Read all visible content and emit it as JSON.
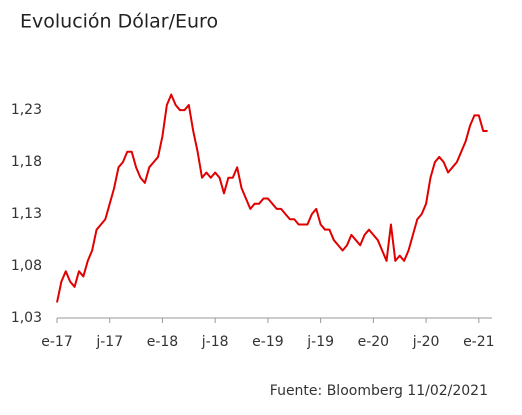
{
  "chart_data": {
    "type": "line",
    "title": "Evolución Dólar/Euro",
    "source": "Fuente: Bloomberg 11/02/2021",
    "x": [
      0,
      0.5,
      1,
      1.5,
      2,
      2.5,
      3,
      3.5,
      4,
      4.5,
      5,
      5.5,
      6,
      6.5,
      7,
      7.5,
      8,
      8.5,
      9,
      9.5,
      10,
      10.5,
      11,
      11.5,
      12,
      12.5,
      13,
      13.5,
      14,
      14.5,
      15,
      15.5,
      16,
      16.5,
      17,
      17.5,
      18,
      18.5,
      19,
      19.5,
      20,
      20.5,
      21,
      21.5,
      22,
      22.5,
      23,
      23.5,
      24,
      24.5,
      25,
      25.5,
      26,
      26.5,
      27,
      27.5,
      28,
      28.5,
      29,
      29.5,
      30,
      30.5,
      31,
      31.5,
      32,
      32.5,
      33,
      33.5,
      34,
      34.5,
      35,
      35.5,
      36,
      36.5,
      37,
      37.5,
      38,
      38.5,
      39,
      39.5,
      40,
      40.5,
      41,
      41.5,
      42,
      42.5,
      43,
      43.5,
      44,
      44.5,
      45,
      45.5,
      46,
      46.5,
      47,
      47.5,
      48,
      48.5,
      49
    ],
    "series": [
      {
        "color": "#e00000",
        "values": [
          1.045,
          1.065,
          1.075,
          1.065,
          1.06,
          1.075,
          1.07,
          1.085,
          1.095,
          1.115,
          1.12,
          1.125,
          1.14,
          1.155,
          1.175,
          1.18,
          1.19,
          1.19,
          1.175,
          1.165,
          1.16,
          1.175,
          1.18,
          1.185,
          1.205,
          1.235,
          1.245,
          1.235,
          1.23,
          1.23,
          1.235,
          1.21,
          1.19,
          1.165,
          1.17,
          1.165,
          1.17,
          1.165,
          1.15,
          1.165,
          1.165,
          1.175,
          1.155,
          1.145,
          1.135,
          1.14,
          1.14,
          1.145,
          1.145,
          1.14,
          1.135,
          1.135,
          1.13,
          1.125,
          1.125,
          1.12,
          1.12,
          1.12,
          1.13,
          1.135,
          1.12,
          1.115,
          1.115,
          1.105,
          1.1,
          1.095,
          1.1,
          1.11,
          1.105,
          1.1,
          1.11,
          1.115,
          1.11,
          1.105,
          1.095,
          1.085,
          1.12,
          1.085,
          1.09,
          1.085,
          1.095,
          1.11,
          1.125,
          1.13,
          1.14,
          1.165,
          1.18,
          1.185,
          1.18,
          1.17,
          1.175,
          1.18,
          1.19,
          1.2,
          1.215,
          1.225,
          1.225,
          1.21,
          1.21
        ]
      }
    ],
    "xlim": [
      0,
      49.5
    ],
    "xticks": [
      {
        "value": 0,
        "label": "e-17"
      },
      {
        "value": 6,
        "label": "j-17"
      },
      {
        "value": 12,
        "label": "e-18"
      },
      {
        "value": 18,
        "label": "j-18"
      },
      {
        "value": 24,
        "label": "e-19"
      },
      {
        "value": 30,
        "label": "j-19"
      },
      {
        "value": 36,
        "label": "e-20"
      },
      {
        "value": 42,
        "label": "j-20"
      },
      {
        "value": 48,
        "label": "e-21"
      }
    ],
    "ylim": [
      1.03,
      1.26
    ],
    "yticks": [
      {
        "value": 1.03,
        "label": "1,03"
      },
      {
        "value": 1.08,
        "label": "1,08"
      },
      {
        "value": 1.13,
        "label": "1,13"
      },
      {
        "value": 1.18,
        "label": "1,18"
      },
      {
        "value": 1.23,
        "label": "1,23"
      }
    ]
  }
}
